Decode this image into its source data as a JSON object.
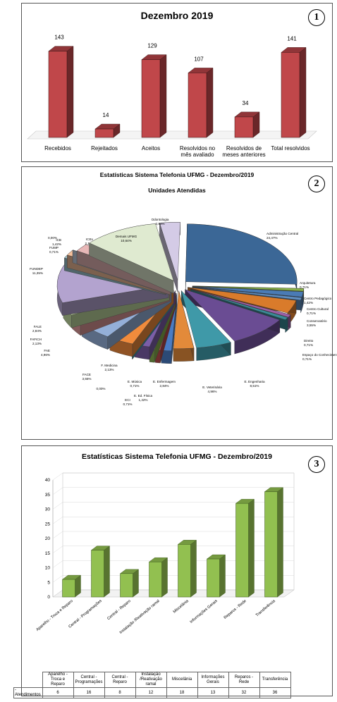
{
  "panels": [
    {
      "badge": "1"
    },
    {
      "badge": "2"
    },
    {
      "badge": "3"
    }
  ],
  "chart_data": [
    {
      "type": "bar",
      "title": "Dezembro 2019",
      "categories": [
        "Recebidos",
        "Rejeitados",
        "Aceitos",
        "Resolvidos no mês avaliado",
        "Resolvidos de meses anteriores",
        "Total resolvidos"
      ],
      "values": [
        143,
        14,
        129,
        107,
        34,
        141
      ],
      "color": "#c0474a",
      "style": "3d"
    },
    {
      "type": "pie",
      "title": "Estatísticas Sistema Telefonia UFMG - Dezembro/2019",
      "subtitle": "Unidades Atendidas",
      "style": "3d-exploded",
      "slices": [
        {
          "name": "Administração Central",
          "value": 24.47,
          "label": "24,47%",
          "color": "#3b6796"
        },
        {
          "name": "Arquitetura",
          "value": 0.71,
          "label": "0,71%",
          "color": "#8ab24a"
        },
        {
          "name": "Centro Pedagógico",
          "value": 1.42,
          "label": "1,42%",
          "color": "#4a7bb5"
        },
        {
          "name": "Centro Cultural",
          "value": 0.71,
          "label": "0,71%",
          "color": "#5e8dc0"
        },
        {
          "name": "Conservatório",
          "value": 3.55,
          "label": "3,55%",
          "color": "#d97b2b"
        },
        {
          "name": "Direito",
          "value": 0.71,
          "label": "0,71%",
          "color": "#9c5fa6"
        },
        {
          "name": "Espaço do Conhecimento",
          "value": 0.71,
          "label": "0,71%",
          "color": "#3a8a96"
        },
        {
          "name": "E. Engenharia",
          "value": 8.51,
          "label": "8,51%",
          "color": "#6a4c93"
        },
        {
          "name": "E. Veterinária",
          "value": 4.96,
          "label": "4,96%",
          "color": "#3f99a8"
        },
        {
          "name": "E. Enfermagem",
          "value": 2.84,
          "label": "2,84%",
          "color": "#e38a3a"
        },
        {
          "name": "E. Ed. Física",
          "value": 1.42,
          "label": "1,42%",
          "color": "#4a7cc4"
        },
        {
          "name": "E. Música",
          "value": 0.71,
          "label": "0,71%",
          "color": "#b84a4a"
        },
        {
          "name": "ECI",
          "value": 0.71,
          "label": "0,71%",
          "color": "#86ad4e"
        },
        {
          "name": "F. Medicina",
          "value": 2.13,
          "label": "2,13%",
          "color": "#7b5ea8"
        },
        {
          "name": "",
          "value": 0.0,
          "label": "0,00%",
          "color": "#42a0b0"
        },
        {
          "name": "FACE",
          "value": 3.55,
          "label": "3,55%",
          "color": "#f08b3c"
        },
        {
          "name": "FAE",
          "value": 4.96,
          "label": "4,96%",
          "color": "#94afd8"
        },
        {
          "name": "FAFICH",
          "value": 2.13,
          "label": "2,13%",
          "color": "#d99696"
        },
        {
          "name": "FALE",
          "value": 2.84,
          "label": "2,84%",
          "color": "#bcd49c"
        },
        {
          "name": "FUNDEP",
          "value": 11.35,
          "label": "11,35%",
          "color": "#b3a3cf"
        },
        {
          "name": "FUMP",
          "value": 0.71,
          "label": "0,71%",
          "color": "#9fcad4"
        },
        {
          "name": "ICB",
          "value": 1.42,
          "label": "1,42%",
          "color": "#f5c09c"
        },
        {
          "name": "",
          "value": 0.0,
          "label": "0,00%",
          "color": "#c7d5ea"
        },
        {
          "name": "ICEx",
          "value": 2.13,
          "label": "2,13%",
          "color": "#e8b7b7"
        },
        {
          "name": "Demais UFMG",
          "value": 10.64,
          "label": "10,64%",
          "color": "#dfead0"
        },
        {
          "name": "Odontologia",
          "value": 2.84,
          "label": "2,84%",
          "color": "#d4cbe6"
        }
      ]
    },
    {
      "type": "bar",
      "title": "Estatísticas Sistema Telefonia UFMG - Dezembro/2019",
      "style": "3d",
      "color": "#92c050",
      "ylim": [
        0,
        40
      ],
      "yticks": [
        "0",
        "5",
        "10",
        "15",
        "20",
        "25",
        "30",
        "35",
        "40"
      ],
      "categories": [
        "Aparelho - Troca e Reparo",
        "Central - Programações",
        "Central - Reparo",
        "Instalação /Reativação ramal",
        "Miscelânia",
        "Informações Gerais",
        "Reparos - Rede",
        "Transferência"
      ],
      "series": [
        {
          "name": "Atendimentos",
          "values": [
            6,
            16,
            8,
            12,
            18,
            13,
            32,
            36
          ]
        }
      ],
      "table": {
        "headers": [
          "Aparelho - Troca e Reparo",
          "Central - Programações",
          "Central - Reparo",
          "Instalação /Reativação ramal",
          "Miscelânia",
          "Informações Gerais",
          "Reparos - Rede",
          "Transferência"
        ],
        "row_label": "Atendimentos",
        "values": [
          "6",
          "16",
          "8",
          "12",
          "18",
          "13",
          "32",
          "36"
        ]
      }
    }
  ]
}
